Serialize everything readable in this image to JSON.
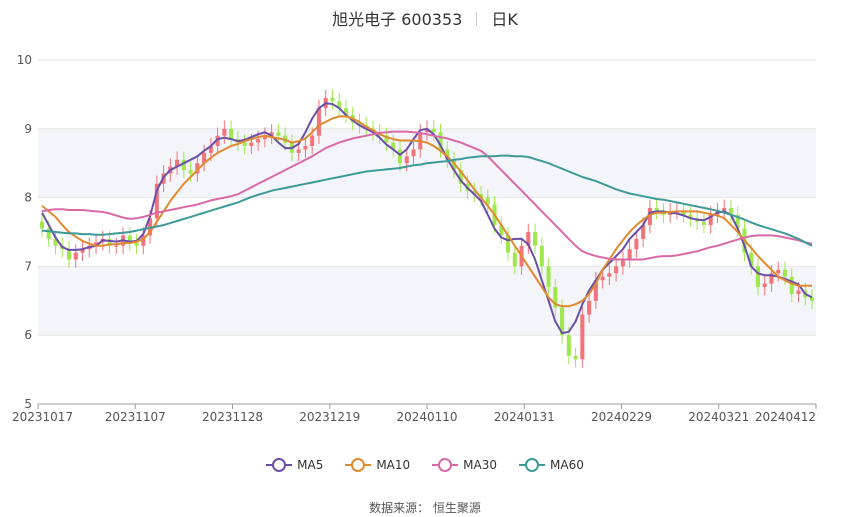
{
  "title": {
    "name": "旭光电子 600353",
    "period": "日K"
  },
  "source_label": "数据来源：",
  "source_name": "恒生聚源",
  "colors": {
    "up": "#f0747a",
    "down": "#9ee84e",
    "grid": "#e6e6e6",
    "band": "#f4f5fa",
    "MA5": "#6b4ea8",
    "MA10": "#e08a30",
    "MA30": "#d86aa8",
    "MA60": "#3e9a98"
  },
  "chart_data": {
    "type": "candlestick",
    "ylim": [
      5,
      10
    ],
    "y_ticks": [
      "5",
      "6",
      "7",
      "8",
      "9",
      "10"
    ],
    "x_tick_labels": [
      "20231017",
      "20231107",
      "20231128",
      "20231219",
      "20240110",
      "20240131",
      "20240229",
      "20240321",
      "20240412"
    ],
    "legend": [
      "MA5",
      "MA10",
      "MA30",
      "MA60"
    ],
    "closes": [
      7.55,
      7.4,
      7.3,
      7.25,
      7.1,
      7.2,
      7.25,
      7.3,
      7.35,
      7.4,
      7.3,
      7.3,
      7.45,
      7.35,
      7.3,
      7.45,
      7.7,
      8.2,
      8.35,
      8.45,
      8.55,
      8.4,
      8.35,
      8.5,
      8.65,
      8.75,
      8.9,
      9.0,
      8.85,
      8.8,
      8.75,
      8.8,
      8.85,
      8.9,
      8.95,
      8.9,
      8.8,
      8.65,
      8.7,
      8.75,
      8.9,
      9.3,
      9.45,
      9.4,
      9.3,
      9.2,
      9.1,
      9.05,
      9.0,
      8.95,
      8.9,
      8.8,
      8.7,
      8.5,
      8.6,
      8.7,
      8.95,
      9.0,
      8.95,
      8.7,
      8.55,
      8.4,
      8.2,
      8.1,
      8.05,
      8.0,
      7.9,
      7.6,
      7.45,
      7.2,
      7.0,
      7.3,
      7.5,
      7.3,
      7.0,
      6.7,
      6.4,
      6.0,
      5.7,
      5.65,
      6.3,
      6.5,
      6.8,
      6.85,
      6.9,
      7.0,
      7.1,
      7.25,
      7.4,
      7.6,
      7.85,
      7.8,
      7.75,
      7.8,
      7.8,
      7.75,
      7.7,
      7.65,
      7.6,
      7.75,
      7.8,
      7.85,
      7.75,
      7.55,
      7.2,
      7.0,
      6.7,
      6.75,
      6.9,
      6.95,
      6.85,
      6.6,
      6.65,
      6.55,
      6.5
    ],
    "series": [
      {
        "name": "MA5",
        "values": [
          7.78,
          7.6,
          7.42,
          7.28,
          7.24,
          7.24,
          7.25,
          7.28,
          7.3,
          7.38,
          7.37,
          7.36,
          7.38,
          7.36,
          7.37,
          7.47,
          7.73,
          8.1,
          8.3,
          8.4,
          8.45,
          8.5,
          8.55,
          8.6,
          8.68,
          8.75,
          8.85,
          8.87,
          8.85,
          8.82,
          8.84,
          8.88,
          8.92,
          8.95,
          8.9,
          8.8,
          8.72,
          8.72,
          8.78,
          8.95,
          9.15,
          9.3,
          9.37,
          9.36,
          9.3,
          9.2,
          9.12,
          9.05,
          9.0,
          8.95,
          8.87,
          8.77,
          8.7,
          8.62,
          8.7,
          8.85,
          8.98,
          9.0,
          8.92,
          8.76,
          8.56,
          8.4,
          8.25,
          8.14,
          8.05,
          7.95,
          7.75,
          7.55,
          7.42,
          7.38,
          7.4,
          7.4,
          7.32,
          7.1,
          6.8,
          6.5,
          6.2,
          6.03,
          6.05,
          6.2,
          6.45,
          6.65,
          6.8,
          6.95,
          7.05,
          7.15,
          7.25,
          7.4,
          7.5,
          7.6,
          7.78,
          7.8,
          7.8,
          7.78,
          7.77,
          7.74,
          7.7,
          7.68,
          7.67,
          7.72,
          7.78,
          7.8,
          7.75,
          7.55,
          7.3,
          7.0,
          6.9,
          6.87,
          6.87,
          6.85,
          6.82,
          6.78,
          6.74,
          6.6,
          6.55
        ]
      },
      {
        "name": "MA10",
        "values": [
          7.88,
          7.8,
          7.72,
          7.6,
          7.5,
          7.43,
          7.37,
          7.33,
          7.3,
          7.3,
          7.32,
          7.32,
          7.34,
          7.34,
          7.36,
          7.4,
          7.5,
          7.65,
          7.8,
          7.95,
          8.08,
          8.2,
          8.3,
          8.4,
          8.5,
          8.58,
          8.65,
          8.7,
          8.75,
          8.78,
          8.82,
          8.85,
          8.88,
          8.9,
          8.88,
          8.86,
          8.84,
          8.8,
          8.82,
          8.86,
          8.95,
          9.05,
          9.1,
          9.15,
          9.18,
          9.18,
          9.15,
          9.1,
          9.03,
          8.98,
          8.92,
          8.88,
          8.85,
          8.83,
          8.83,
          8.83,
          8.82,
          8.8,
          8.75,
          8.68,
          8.6,
          8.5,
          8.38,
          8.25,
          8.12,
          8.0,
          7.88,
          7.75,
          7.6,
          7.45,
          7.3,
          7.15,
          7.0,
          6.85,
          6.7,
          6.55,
          6.45,
          6.42,
          6.42,
          6.45,
          6.5,
          6.6,
          6.75,
          6.95,
          7.1,
          7.25,
          7.38,
          7.5,
          7.6,
          7.68,
          7.75,
          7.78,
          7.78,
          7.79,
          7.8,
          7.8,
          7.8,
          7.8,
          7.78,
          7.76,
          7.74,
          7.7,
          7.6,
          7.5,
          7.38,
          7.27,
          7.15,
          7.05,
          6.95,
          6.85,
          6.8,
          6.75,
          6.72,
          6.72,
          6.72
        ]
      },
      {
        "name": "MA30",
        "values": [
          7.8,
          7.82,
          7.83,
          7.83,
          7.82,
          7.82,
          7.82,
          7.81,
          7.8,
          7.79,
          7.77,
          7.74,
          7.71,
          7.69,
          7.7,
          7.72,
          7.75,
          7.78,
          7.8,
          7.82,
          7.84,
          7.86,
          7.88,
          7.9,
          7.93,
          7.96,
          7.98,
          8.0,
          8.02,
          8.05,
          8.1,
          8.15,
          8.2,
          8.25,
          8.3,
          8.35,
          8.4,
          8.45,
          8.5,
          8.55,
          8.6,
          8.66,
          8.72,
          8.76,
          8.8,
          8.83,
          8.86,
          8.88,
          8.9,
          8.92,
          8.94,
          8.95,
          8.96,
          8.96,
          8.96,
          8.95,
          8.94,
          8.92,
          8.9,
          8.88,
          8.86,
          8.83,
          8.8,
          8.76,
          8.72,
          8.68,
          8.6,
          8.5,
          8.4,
          8.3,
          8.2,
          8.1,
          8.0,
          7.9,
          7.8,
          7.7,
          7.6,
          7.5,
          7.4,
          7.3,
          7.22,
          7.18,
          7.15,
          7.13,
          7.11,
          7.1,
          7.1,
          7.1,
          7.1,
          7.1,
          7.12,
          7.14,
          7.15,
          7.15,
          7.16,
          7.18,
          7.2,
          7.22,
          7.25,
          7.28,
          7.3,
          7.33,
          7.36,
          7.39,
          7.42,
          7.44,
          7.45,
          7.45,
          7.45,
          7.44,
          7.42,
          7.4,
          7.38,
          7.35,
          7.33
        ]
      },
      {
        "name": "MA60",
        "values": [
          7.52,
          7.51,
          7.5,
          7.49,
          7.48,
          7.48,
          7.47,
          7.47,
          7.46,
          7.46,
          7.47,
          7.48,
          7.49,
          7.5,
          7.52,
          7.54,
          7.56,
          7.58,
          7.6,
          7.63,
          7.66,
          7.69,
          7.72,
          7.75,
          7.78,
          7.81,
          7.84,
          7.87,
          7.9,
          7.93,
          7.97,
          8.01,
          8.04,
          8.07,
          8.1,
          8.12,
          8.14,
          8.16,
          8.18,
          8.2,
          8.22,
          8.24,
          8.26,
          8.28,
          8.3,
          8.32,
          8.34,
          8.36,
          8.38,
          8.39,
          8.4,
          8.41,
          8.42,
          8.43,
          8.45,
          8.47,
          8.48,
          8.5,
          8.51,
          8.52,
          8.53,
          8.55,
          8.56,
          8.58,
          8.59,
          8.6,
          8.6,
          8.6,
          8.61,
          8.61,
          8.6,
          8.6,
          8.59,
          8.56,
          8.53,
          8.5,
          8.46,
          8.42,
          8.38,
          8.34,
          8.3,
          8.27,
          8.24,
          8.2,
          8.16,
          8.12,
          8.09,
          8.06,
          8.04,
          8.02,
          8.0,
          7.98,
          7.97,
          7.95,
          7.93,
          7.91,
          7.89,
          7.87,
          7.85,
          7.83,
          7.81,
          7.78,
          7.75,
          7.72,
          7.68,
          7.64,
          7.6,
          7.57,
          7.54,
          7.51,
          7.48,
          7.44,
          7.4,
          7.35,
          7.3
        ]
      }
    ]
  }
}
